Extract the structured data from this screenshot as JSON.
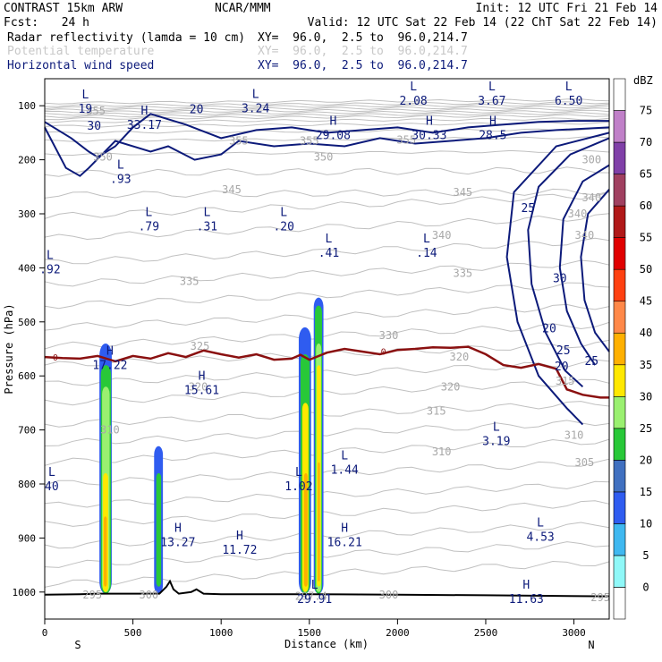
{
  "header": {
    "model": "CONTRAST 15km ARW",
    "center": "NCAR/MMM",
    "init": "Init: 12 UTC Fri 21 Feb 14",
    "fcst_label": "Fcst:",
    "fcst_value": "24 h",
    "valid": "Valid: 12 UTC Sat 22 Feb 14 (22 ChT Sat 22 Feb 14)"
  },
  "fields": [
    {
      "name": "Radar reflectivity (lamda = 10 cm)",
      "xy": "XY=  96.0,  2.5 to  96.0,214.7",
      "color": "#000000"
    },
    {
      "name": "Potential temperature",
      "xy": "XY=  96.0,  2.5 to  96.0,214.7",
      "color": "#c8c8c8"
    },
    {
      "name": "Horizontal wind speed",
      "xy": "XY=  96.0,  2.5 to  96.0,214.7",
      "color": "#0c1a7a"
    }
  ],
  "colorbar": {
    "unit": "dBZ",
    "levels": [
      "0",
      "5",
      "10",
      "15",
      "20",
      "25",
      "30",
      "35",
      "40",
      "45",
      "50",
      "55",
      "60",
      "65",
      "70",
      "75"
    ],
    "colors": [
      "#ffffff",
      "#8ff8f8",
      "#3fb8f0",
      "#2f5cf0",
      "#4070c0",
      "#28c838",
      "#9af070",
      "#ffe800",
      "#ffb000",
      "#ff8848",
      "#ff4010",
      "#e00000",
      "#b01818",
      "#a04060",
      "#8040a8",
      "#c080c8",
      "#ffffff"
    ]
  },
  "chart_data": {
    "type": "cross-section",
    "title": "Radar reflectivity, potential temperature, horizontal wind speed",
    "xlabel": "Distance (km)",
    "ylabel": "Pressure (hPa)",
    "xlim": [
      0,
      3200
    ],
    "ylim": [
      1050,
      50
    ],
    "x_ticks": [
      0,
      500,
      1000,
      1500,
      2000,
      2500,
      3000
    ],
    "y_ticks": [
      100,
      200,
      300,
      400,
      500,
      600,
      700,
      800,
      900,
      1000
    ],
    "endpoints": {
      "left": "S",
      "right": "N"
    },
    "terrain": [
      [
        0,
        1005
      ],
      [
        200,
        1004
      ],
      [
        300,
        1003
      ],
      [
        650,
        1003
      ],
      [
        690,
        990
      ],
      [
        710,
        980
      ],
      [
        730,
        995
      ],
      [
        760,
        1003
      ],
      [
        830,
        1000
      ],
      [
        860,
        995
      ],
      [
        900,
        1003
      ],
      [
        1000,
        1004
      ],
      [
        1500,
        1004
      ],
      [
        2000,
        1005
      ],
      [
        2500,
        1006
      ],
      [
        3200,
        1008
      ]
    ],
    "zero_isotherm_label": "0",
    "zero_isotherm": [
      [
        0,
        565
      ],
      [
        100,
        567
      ],
      [
        200,
        568
      ],
      [
        300,
        563
      ],
      [
        400,
        573
      ],
      [
        500,
        563
      ],
      [
        600,
        568
      ],
      [
        700,
        558
      ],
      [
        800,
        565
      ],
      [
        900,
        553
      ],
      [
        1000,
        560
      ],
      [
        1100,
        566
      ],
      [
        1200,
        560
      ],
      [
        1300,
        570
      ],
      [
        1400,
        568
      ],
      [
        1450,
        561
      ],
      [
        1500,
        570
      ],
      [
        1600,
        557
      ],
      [
        1700,
        550
      ],
      [
        1800,
        555
      ],
      [
        1900,
        560
      ],
      [
        2000,
        552
      ],
      [
        2100,
        550
      ],
      [
        2200,
        547
      ],
      [
        2300,
        548
      ],
      [
        2400,
        546
      ],
      [
        2500,
        560
      ],
      [
        2600,
        580
      ],
      [
        2700,
        585
      ],
      [
        2800,
        578
      ],
      [
        2900,
        587
      ],
      [
        2960,
        625
      ],
      [
        3050,
        635
      ],
      [
        3150,
        640
      ],
      [
        3200,
        640
      ]
    ],
    "theta_labels": [
      {
        "x": 370,
        "p": 700,
        "t": "310"
      },
      {
        "x": 1950,
        "p": 525,
        "t": "330"
      },
      {
        "x": 880,
        "p": 545,
        "t": "325"
      },
      {
        "x": 870,
        "p": 620,
        "t": "320"
      },
      {
        "x": 2300,
        "p": 620,
        "t": "320"
      },
      {
        "x": 2220,
        "p": 665,
        "t": "315"
      },
      {
        "x": 2250,
        "p": 740,
        "t": "310"
      },
      {
        "x": 2350,
        "p": 565,
        "t": "320"
      },
      {
        "x": 2950,
        "p": 610,
        "t": "315"
      },
      {
        "x": 3000,
        "p": 710,
        "t": "310"
      },
      {
        "x": 3060,
        "p": 760,
        "t": "305"
      },
      {
        "x": 820,
        "p": 425,
        "t": "335"
      },
      {
        "x": 2370,
        "p": 410,
        "t": "335"
      },
      {
        "x": 2250,
        "p": 340,
        "t": "340"
      },
      {
        "x": 2370,
        "p": 260,
        "t": "345"
      },
      {
        "x": 1060,
        "p": 255,
        "t": "345"
      },
      {
        "x": 1580,
        "p": 195,
        "t": "350"
      },
      {
        "x": 1100,
        "p": 165,
        "t": "355"
      },
      {
        "x": 1500,
        "p": 165,
        "t": "355"
      },
      {
        "x": 330,
        "p": 195,
        "t": "350"
      },
      {
        "x": 2050,
        "p": 163,
        "t": "355"
      },
      {
        "x": 3100,
        "p": 200,
        "t": "300"
      },
      {
        "x": 3100,
        "p": 270,
        "t": "340"
      },
      {
        "x": 3060,
        "p": 340,
        "t": "340"
      },
      {
        "x": 3150,
        "p": 1010,
        "t": "295"
      },
      {
        "x": 270,
        "p": 1005,
        "t": "295"
      },
      {
        "x": 590,
        "p": 1005,
        "t": "300"
      },
      {
        "x": 1950,
        "p": 1005,
        "t": "300"
      },
      {
        "x": 1510,
        "p": 1008,
        "t": "297.4"
      },
      {
        "x": 3020,
        "p": 300,
        "t": "340"
      },
      {
        "x": 290,
        "p": 110,
        "t": "355"
      }
    ],
    "wind_labels": [
      {
        "x": 860,
        "p": 107,
        "t": "20"
      },
      {
        "x": 280,
        "p": 138,
        "t": "30"
      },
      {
        "x": 2740,
        "p": 290,
        "t": "25"
      },
      {
        "x": 2920,
        "p": 420,
        "t": "30"
      },
      {
        "x": 2860,
        "p": 513,
        "t": "20"
      },
      {
        "x": 2940,
        "p": 553,
        "t": "25"
      },
      {
        "x": 2930,
        "p": 583,
        "t": "20"
      },
      {
        "x": 3100,
        "p": 573,
        "t": "25"
      }
    ],
    "extrema": [
      {
        "x": 230,
        "p": 93,
        "kind": "L",
        "val": "19"
      },
      {
        "x": 1195,
        "p": 92,
        "kind": "L",
        "val": "3.24"
      },
      {
        "x": 2090,
        "p": 78,
        "kind": "L",
        "val": "2.08"
      },
      {
        "x": 2535,
        "p": 78,
        "kind": "L",
        "val": "3.67"
      },
      {
        "x": 2970,
        "p": 78,
        "kind": "L",
        "val": "6.50"
      },
      {
        "x": 565,
        "p": 123,
        "kind": "H",
        "val": "33.17"
      },
      {
        "x": 1635,
        "p": 142,
        "kind": "H",
        "val": "29.08"
      },
      {
        "x": 2180,
        "p": 142,
        "kind": "H",
        "val": "30.33"
      },
      {
        "x": 2540,
        "p": 142,
        "kind": "H",
        "val": "28.5"
      },
      {
        "x": 430,
        "p": 223,
        "kind": "L",
        "val": ".93"
      },
      {
        "x": 590,
        "p": 311,
        "kind": "L",
        "val": ".79"
      },
      {
        "x": 920,
        "p": 311,
        "kind": "L",
        "val": ".31"
      },
      {
        "x": 1355,
        "p": 311,
        "kind": "L",
        "val": ".20"
      },
      {
        "x": 1610,
        "p": 360,
        "kind": "L",
        "val": ".41"
      },
      {
        "x": 2165,
        "p": 360,
        "kind": "L",
        "val": ".14"
      },
      {
        "x": 30,
        "p": 390,
        "kind": "L",
        "val": ".92"
      },
      {
        "x": 370,
        "p": 567,
        "kind": "H",
        "val": "17.22"
      },
      {
        "x": 890,
        "p": 614,
        "kind": "H",
        "val": "15.61"
      },
      {
        "x": 2560,
        "p": 708,
        "kind": "L",
        "val": "3.19"
      },
      {
        "x": 1700,
        "p": 761,
        "kind": "L",
        "val": "1.44"
      },
      {
        "x": 1440,
        "p": 792,
        "kind": "L",
        "val": "1.02"
      },
      {
        "x": 40,
        "p": 792,
        "kind": "L",
        "val": "40"
      },
      {
        "x": 755,
        "p": 895,
        "kind": "H",
        "val": "13.27"
      },
      {
        "x": 1105,
        "p": 909,
        "kind": "H",
        "val": "11.72"
      },
      {
        "x": 1700,
        "p": 895,
        "kind": "H",
        "val": "16.21"
      },
      {
        "x": 2810,
        "p": 885,
        "kind": "L",
        "val": "4.53"
      },
      {
        "x": 2730,
        "p": 1000,
        "kind": "H",
        "val": "11.63"
      },
      {
        "x": 1530,
        "p": 1000,
        "kind": "L",
        "val": "29.91"
      }
    ],
    "reflectivity_cells": [
      {
        "x": [
          310,
          380
        ],
        "p": [
          540,
          1003
        ],
        "dbz": 10
      },
      {
        "x": [
          318,
          376
        ],
        "p": [
          580,
          1003
        ],
        "dbz": 20
      },
      {
        "x": [
          325,
          368
        ],
        "p": [
          620,
          1000
        ],
        "dbz": 25
      },
      {
        "x": [
          330,
          360
        ],
        "p": [
          780,
          1000
        ],
        "dbz": 30
      },
      {
        "x": [
          335,
          352
        ],
        "p": [
          860,
          990
        ],
        "dbz": 35
      },
      {
        "x": [
          620,
          670
        ],
        "p": [
          730,
          1003
        ],
        "dbz": 10
      },
      {
        "x": [
          632,
          660
        ],
        "p": [
          780,
          990
        ],
        "dbz": 20
      },
      {
        "x": [
          1440,
          1510
        ],
        "p": [
          510,
          1003
        ],
        "dbz": 10
      },
      {
        "x": [
          1450,
          1502
        ],
        "p": [
          560,
          1003
        ],
        "dbz": 20
      },
      {
        "x": [
          1460,
          1495
        ],
        "p": [
          650,
          1000
        ],
        "dbz": 30
      },
      {
        "x": [
          1470,
          1490
        ],
        "p": [
          780,
          990
        ],
        "dbz": 35
      },
      {
        "x": [
          1525,
          1580
        ],
        "p": [
          455,
          1003
        ],
        "dbz": 10
      },
      {
        "x": [
          1532,
          1572
        ],
        "p": [
          470,
          1003
        ],
        "dbz": 20
      },
      {
        "x": [
          1538,
          1568
        ],
        "p": [
          540,
          1000
        ],
        "dbz": 25
      },
      {
        "x": [
          1542,
          1565
        ],
        "p": [
          580,
          990
        ],
        "dbz": 30
      },
      {
        "x": [
          1548,
          1560
        ],
        "p": [
          760,
          980
        ],
        "dbz": 35
      }
    ]
  }
}
